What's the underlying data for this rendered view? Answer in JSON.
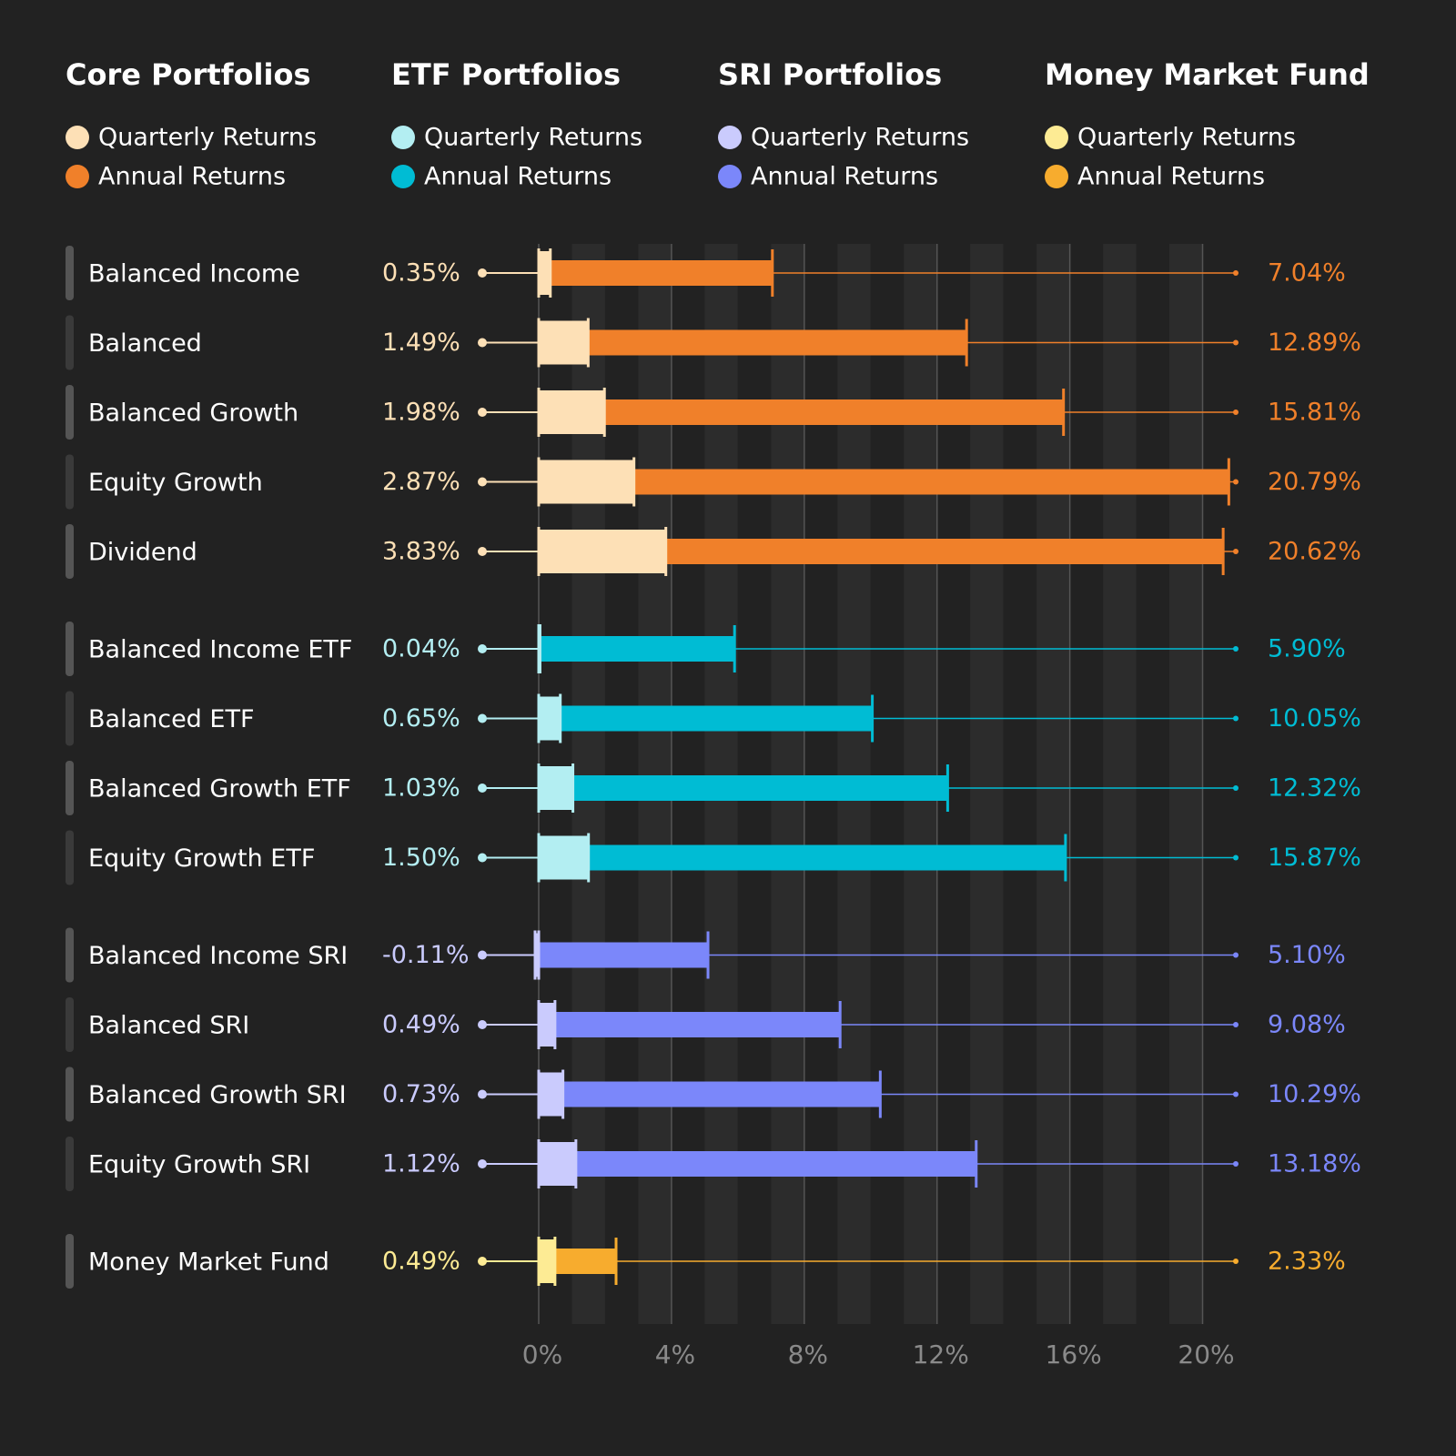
{
  "chart_data": {
    "type": "bar",
    "orientation": "horizontal",
    "groups": [
      {
        "title": "Core Portfolios",
        "categories": [
          "Balanced Income",
          "Balanced",
          "Balanced Growth",
          "Equity Growth",
          "Dividend"
        ],
        "series": [
          {
            "name": "Quarterly Returns",
            "color": "#fde0b6",
            "values": [
              0.35,
              1.49,
              1.98,
              2.87,
              3.83
            ],
            "value_labels": [
              "0.35%",
              "1.49%",
              "1.98%",
              "2.87%",
              "3.83%"
            ]
          },
          {
            "name": "Annual Returns",
            "color": "#f0802a",
            "values": [
              7.04,
              12.89,
              15.81,
              20.79,
              20.62
            ],
            "value_labels": [
              "7.04%",
              "12.89%",
              "15.81%",
              "20.79%",
              "20.62%"
            ]
          }
        ]
      },
      {
        "title": "ETF Portfolios",
        "categories": [
          "Balanced Income ETF",
          "Balanced ETF",
          "Balanced Growth ETF",
          "Equity Growth ETF"
        ],
        "series": [
          {
            "name": "Quarterly Returns",
            "color": "#b3eef2",
            "values": [
              0.04,
              0.65,
              1.03,
              1.5
            ],
            "value_labels": [
              "0.04%",
              "0.65%",
              "1.03%",
              "1.50%"
            ]
          },
          {
            "name": "Annual Returns",
            "color": "#00bcd4",
            "values": [
              5.9,
              10.05,
              12.32,
              15.87
            ],
            "value_labels": [
              "5.90%",
              "10.05%",
              "12.32%",
              "15.87%"
            ]
          }
        ]
      },
      {
        "title": "SRI Portfolios",
        "categories": [
          "Balanced Income SRI",
          "Balanced SRI",
          "Balanced Growth SRI",
          "Equity Growth SRI"
        ],
        "series": [
          {
            "name": "Quarterly Returns",
            "color": "#cacbfd",
            "values": [
              -0.11,
              0.49,
              0.73,
              1.12
            ],
            "value_labels": [
              "-0.11%",
              "0.49%",
              "0.73%",
              "1.12%"
            ]
          },
          {
            "name": "Annual Returns",
            "color": "#7b87fa",
            "values": [
              5.1,
              9.08,
              10.29,
              13.18
            ],
            "value_labels": [
              "5.10%",
              "9.08%",
              "10.29%",
              "13.18%"
            ]
          }
        ]
      },
      {
        "title": "Money Market Fund",
        "categories": [
          "Money Market Fund"
        ],
        "series": [
          {
            "name": "Quarterly Returns",
            "color": "#fdeb94",
            "values": [
              0.49
            ],
            "value_labels": [
              "0.49%"
            ]
          },
          {
            "name": "Annual Returns",
            "color": "#f7ac2e",
            "values": [
              2.33
            ],
            "value_labels": [
              "2.33%"
            ]
          }
        ]
      }
    ],
    "xlim": [
      0,
      21
    ],
    "xticks": [
      {
        "value": 0,
        "label": "0%"
      },
      {
        "value": 4,
        "label": "4%"
      },
      {
        "value": 8,
        "label": "8%"
      },
      {
        "value": 12,
        "label": "12%"
      },
      {
        "value": 16,
        "label": "16%"
      },
      {
        "value": 20,
        "label": "20%"
      }
    ],
    "grid": true
  }
}
